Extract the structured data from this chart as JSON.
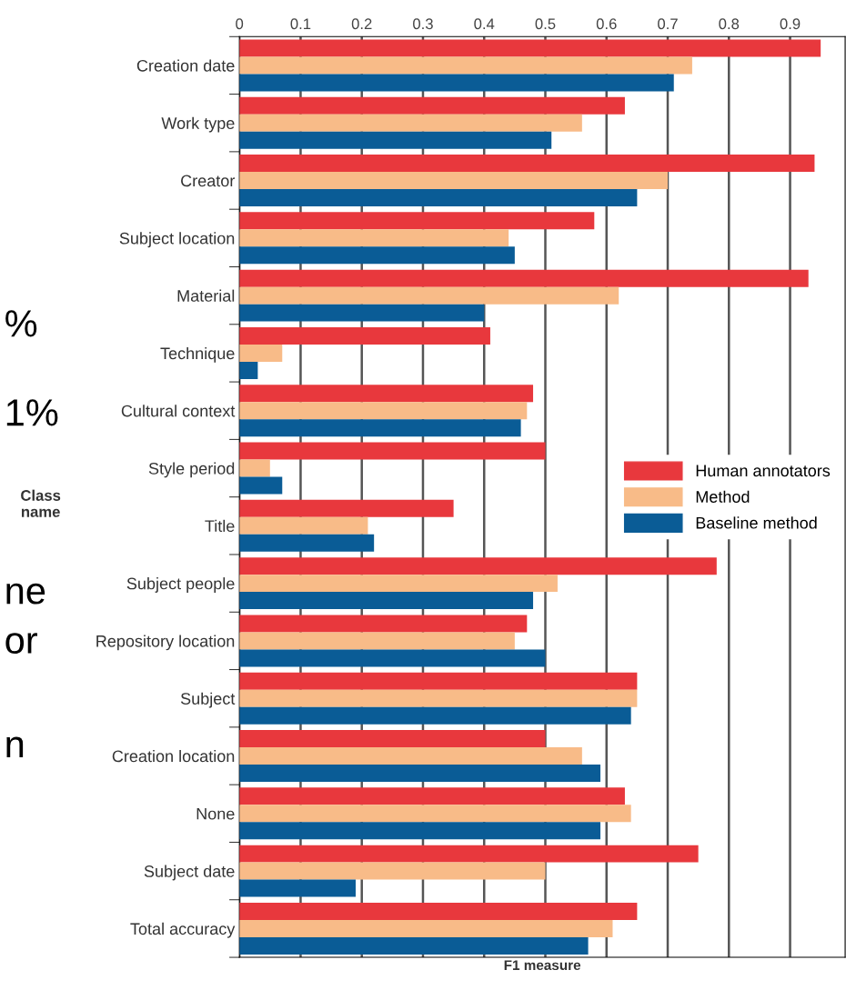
{
  "chart_data": {
    "type": "bar",
    "orientation": "horizontal",
    "xlabel": "F1 measure",
    "ylabel": "Class name",
    "categories": [
      "Creation date",
      "Work type",
      "Creator",
      "Subject location",
      "Material",
      "Technique",
      "Cultural context",
      "Style period",
      "Title",
      "Subject people",
      "Repository location",
      "Subject",
      "Creation location",
      "None",
      "Subject date",
      "Total accuracy"
    ],
    "series": [
      {
        "name": "Human annotators",
        "color": "#e8383d",
        "values": [
          0.95,
          0.63,
          0.94,
          0.58,
          0.93,
          0.41,
          0.48,
          0.5,
          0.35,
          0.78,
          0.47,
          0.65,
          0.5,
          0.63,
          0.75,
          0.65
        ]
      },
      {
        "name": "Method",
        "color": "#f8bb88",
        "values": [
          0.74,
          0.56,
          0.7,
          0.44,
          0.62,
          0.07,
          0.47,
          0.05,
          0.21,
          0.52,
          0.45,
          0.65,
          0.56,
          0.64,
          0.5,
          0.61
        ]
      },
      {
        "name": "Baseline method",
        "color": "#0a5c96",
        "values": [
          0.71,
          0.51,
          0.65,
          0.45,
          0.4,
          0.03,
          0.46,
          0.07,
          0.22,
          0.48,
          0.5,
          0.64,
          0.59,
          0.59,
          0.19,
          0.57
        ]
      }
    ],
    "xlim": [
      0,
      0.99
    ],
    "xticks": [
      0,
      0.1,
      0.2,
      0.3,
      0.4,
      0.5,
      0.6,
      0.7,
      0.8,
      0.9
    ],
    "grid": "x",
    "legend": "right",
    "annotations": [
      "%",
      "1%",
      "ne",
      "or",
      "n"
    ]
  }
}
